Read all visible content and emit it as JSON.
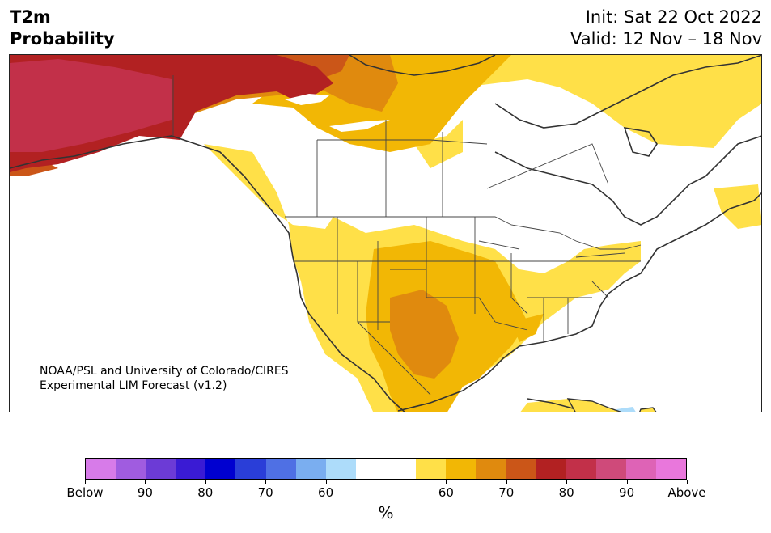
{
  "header": {
    "title_line1": "T2m",
    "title_line2": "Probability",
    "init": "Init: Sat 22 Oct 2022",
    "valid": "Valid: 12 Nov – 18 Nov"
  },
  "credit": {
    "line1": "NOAA/PSL and University of Colorado/CIRES",
    "line2": "Experimental LIM Forecast (v1.2)"
  },
  "colorbar": {
    "colors": [
      "#d77be9",
      "#a05ce0",
      "#6c3bd6",
      "#3a1bd4",
      "#0000d0",
      "#2a3ed8",
      "#4f70e4",
      "#7aaef0",
      "#addcfa",
      "#ffffff",
      "#ffffff",
      "#ffe048",
      "#f2b705",
      "#e08a0e",
      "#cb5618",
      "#b22122",
      "#c23049",
      "#cf4a7a",
      "#de63b6",
      "#e977dc"
    ],
    "labels": [
      "Below",
      "90",
      "80",
      "70",
      "60",
      "60",
      "70",
      "80",
      "90",
      "Above"
    ],
    "unit": "%"
  }
}
